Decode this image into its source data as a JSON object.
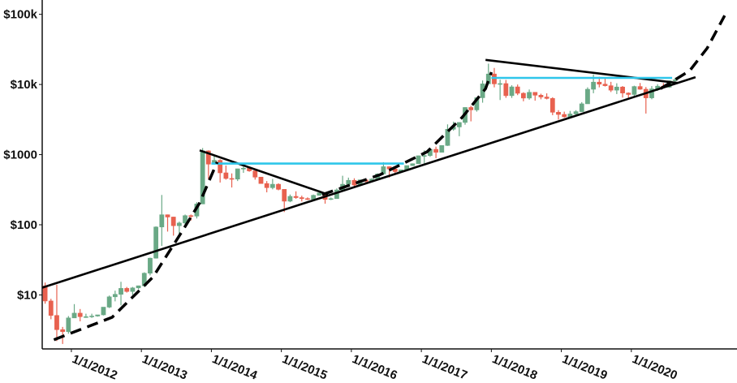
{
  "chart_data": {
    "type": "candlestick",
    "y_scale": "log",
    "xlim": [
      "2011-08",
      "2021-06"
    ],
    "ylim": [
      1.7,
      160000
    ],
    "yticks": [
      {
        "value": 10,
        "label": "$10"
      },
      {
        "value": 100,
        "label": "$100"
      },
      {
        "value": 1000,
        "label": "$1000"
      },
      {
        "value": 10000,
        "label": "$10k"
      },
      {
        "value": 100000,
        "label": "$100k"
      }
    ],
    "xticks": [
      {
        "value": "2012-01",
        "label": "1/1/2012"
      },
      {
        "value": "2013-01",
        "label": "1/1/2013"
      },
      {
        "value": "2014-01",
        "label": "1/1/2014"
      },
      {
        "value": "2015-01",
        "label": "1/1/2015"
      },
      {
        "value": "2016-01",
        "label": "1/1/2016"
      },
      {
        "value": "2017-01",
        "label": "1/1/2017"
      },
      {
        "value": "2018-01",
        "label": "1/1/2018"
      },
      {
        "value": "2019-01",
        "label": "1/1/2019"
      },
      {
        "value": "2020-01",
        "label": "1/1/2020"
      }
    ],
    "up_color": "#6aa986",
    "down_color": "#e8614f",
    "candles": {
      "x": [
        "2011-08",
        "2011-09",
        "2011-10",
        "2011-11",
        "2011-12",
        "2012-01",
        "2012-02",
        "2012-03",
        "2012-04",
        "2012-05",
        "2012-06",
        "2012-07",
        "2012-08",
        "2012-09",
        "2012-10",
        "2012-11",
        "2012-12",
        "2013-01",
        "2013-02",
        "2013-03",
        "2013-04",
        "2013-05",
        "2013-06",
        "2013-07",
        "2013-08",
        "2013-09",
        "2013-10",
        "2013-11",
        "2013-12",
        "2014-01",
        "2014-02",
        "2014-03",
        "2014-04",
        "2014-05",
        "2014-06",
        "2014-07",
        "2014-08",
        "2014-09",
        "2014-10",
        "2014-11",
        "2014-12",
        "2015-01",
        "2015-02",
        "2015-03",
        "2015-04",
        "2015-05",
        "2015-06",
        "2015-07",
        "2015-08",
        "2015-09",
        "2015-10",
        "2015-11",
        "2015-12",
        "2016-01",
        "2016-02",
        "2016-03",
        "2016-04",
        "2016-05",
        "2016-06",
        "2016-07",
        "2016-08",
        "2016-09",
        "2016-10",
        "2016-11",
        "2016-12",
        "2017-01",
        "2017-02",
        "2017-03",
        "2017-04",
        "2017-05",
        "2017-06",
        "2017-07",
        "2017-08",
        "2017-09",
        "2017-10",
        "2017-11",
        "2017-12",
        "2018-01",
        "2018-02",
        "2018-03",
        "2018-04",
        "2018-05",
        "2018-06",
        "2018-07",
        "2018-08",
        "2018-09",
        "2018-10",
        "2018-11",
        "2018-12",
        "2019-01",
        "2019-02",
        "2019-03",
        "2019-04",
        "2019-05",
        "2019-06",
        "2019-07",
        "2019-08",
        "2019-09",
        "2019-10",
        "2019-11",
        "2019-12",
        "2020-01",
        "2020-02",
        "2020-03",
        "2020-04",
        "2020-05",
        "2020-06",
        "2020-07",
        "2020-08"
      ],
      "open": [
        13.4,
        8.2,
        5.1,
        3.2,
        3.0,
        4.7,
        5.5,
        4.9,
        4.9,
        5.0,
        5.2,
        6.7,
        9.4,
        10.2,
        12.4,
        11.2,
        12.6,
        13.5,
        20.4,
        33.4,
        93,
        139,
        129,
        97,
        106,
        135,
        133,
        198,
        1130,
        732,
        830,
        550,
        457,
        448,
        628,
        640,
        586,
        478,
        387,
        338,
        378,
        320,
        217,
        254,
        244,
        236,
        230,
        263,
        284,
        230,
        236,
        314,
        378,
        430,
        369,
        437,
        416,
        448,
        531,
        673,
        624,
        573,
        608,
        698,
        742,
        963,
        970,
        1190,
        1080,
        1350,
        2300,
        2480,
        2875,
        4700,
        4340,
        6470,
        10200,
        14100,
        10200,
        10300,
        6930,
        9240,
        7490,
        6400,
        7730,
        7030,
        6630,
        6320,
        4020,
        3740,
        3460,
        3800,
        4100,
        5300,
        8550,
        10800,
        10100,
        9600,
        8300,
        9200,
        7550,
        7200,
        9350,
        8550,
        6440,
        8650,
        9460,
        9140,
        11300
      ],
      "high": [
        15,
        8.8,
        14,
        3.5,
        5.0,
        7.4,
        6.3,
        5.4,
        5.4,
        5.2,
        6.7,
        9.8,
        11.5,
        15.4,
        13,
        13,
        13.6,
        21,
        34,
        95,
        266,
        140,
        130,
        111,
        140,
        140,
        210,
        1240,
        1150,
        1000,
        860,
        700,
        540,
        630,
        680,
        660,
        600,
        480,
        420,
        450,
        390,
        320,
        270,
        300,
        260,
        246,
        270,
        310,
        290,
        245,
        330,
        500,
        470,
        460,
        440,
        440,
        460,
        540,
        780,
        680,
        630,
        610,
        700,
        750,
        970,
        1150,
        1200,
        1300,
        1360,
        2700,
        2950,
        2900,
        4750,
        4970,
        6470,
        11400,
        19800,
        17200,
        11700,
        11600,
        9750,
        9990,
        7750,
        8480,
        7760,
        7390,
        7470,
        6580,
        4300,
        4100,
        4200,
        4300,
        5600,
        9100,
        13900,
        12900,
        12300,
        10900,
        10400,
        9500,
        7720,
        9600,
        10500,
        9200,
        9470,
        10100,
        10450,
        11400,
        12470
      ],
      "low": [
        7.5,
        4.5,
        2.2,
        2.0,
        2.8,
        4.7,
        4.2,
        4.7,
        4.7,
        4.9,
        5.1,
        6.5,
        8.1,
        7.1,
        10.8,
        10,
        12.1,
        13,
        19,
        33,
        50,
        80,
        70,
        65,
        90,
        115,
        123,
        200,
        450,
        720,
        400,
        440,
        340,
        420,
        550,
        570,
        440,
        390,
        290,
        320,
        310,
        152,
        210,
        235,
        215,
        225,
        220,
        260,
        200,
        225,
        236,
        300,
        360,
        350,
        370,
        400,
        415,
        450,
        520,
        470,
        530,
        570,
        605,
        690,
        740,
        750,
        930,
        890,
        1080,
        1330,
        2200,
        1830,
        2670,
        2980,
        4100,
        5500,
        10900,
        9100,
        6000,
        6450,
        6430,
        7050,
        5760,
        6070,
        5880,
        6140,
        6130,
        3650,
        3150,
        3350,
        3400,
        3700,
        4050,
        5300,
        7500,
        9100,
        9350,
        7800,
        7300,
        6500,
        6400,
        6850,
        8400,
        3850,
        6150,
        8100,
        8900,
        8950,
        10600
      ],
      "close": [
        8.2,
        5.1,
        3.2,
        3.0,
        4.7,
        5.5,
        4.9,
        4.9,
        5.0,
        5.2,
        6.7,
        9.4,
        10.2,
        12.4,
        11.2,
        12.6,
        13.5,
        20.4,
        33.4,
        93,
        139,
        129,
        97,
        106,
        135,
        133,
        198,
        1130,
        732,
        830,
        550,
        457,
        448,
        628,
        640,
        586,
        478,
        387,
        338,
        378,
        320,
        217,
        254,
        244,
        236,
        230,
        263,
        284,
        230,
        236,
        314,
        378,
        430,
        369,
        437,
        416,
        448,
        531,
        673,
        624,
        573,
        608,
        698,
        742,
        963,
        970,
        1190,
        1080,
        1350,
        2300,
        2480,
        2875,
        4700,
        4340,
        6470,
        10200,
        14100,
        10200,
        10300,
        6930,
        9240,
        7490,
        6400,
        7730,
        7030,
        6630,
        6320,
        4020,
        3740,
        3460,
        3800,
        4100,
        5300,
        8550,
        10800,
        10100,
        9600,
        8300,
        9200,
        7550,
        7200,
        9350,
        8550,
        6440,
        8650,
        9460,
        9140,
        11300,
        11650
      ]
    },
    "trend_lines": [
      {
        "color": "#000000",
        "dashed": false,
        "x": [
          "2011-08",
          "2020-12"
        ],
        "y": [
          12.7,
          12700
        ]
      },
      {
        "color": "#000000",
        "dashed": false,
        "x": [
          "2013-11",
          "2015-09"
        ],
        "y": [
          1150,
          270
        ]
      },
      {
        "color": "#2ec6ea",
        "dashed": false,
        "x": [
          "2014-01",
          "2016-10"
        ],
        "y": [
          745,
          745
        ]
      },
      {
        "color": "#000000",
        "dashed": false,
        "x": [
          "2017-12",
          "2020-09"
        ],
        "y": [
          22400,
          10500
        ]
      },
      {
        "color": "#2ec6ea",
        "dashed": false,
        "x": [
          "2018-01",
          "2020-08"
        ],
        "y": [
          12400,
          12400
        ]
      },
      {
        "color": "#000000",
        "dashed": true,
        "x": [
          "2011-10",
          "2012-08",
          "2013-03",
          "2013-08",
          "2013-11",
          "2014-02"
        ],
        "y": [
          2.3,
          4.8,
          18,
          81,
          206,
          785
        ]
      },
      {
        "color": "#000000",
        "dashed": true,
        "x": [
          "2015-08",
          "2016-06",
          "2017-02",
          "2017-08",
          "2017-12",
          "2018-01"
        ],
        "y": [
          269,
          520,
          1100,
          3400,
          8700,
          15000
        ]
      },
      {
        "color": "#000000",
        "dashed": true,
        "x": [
          "2020-06",
          "2020-11",
          "2021-02",
          "2021-05"
        ],
        "y": [
          8700,
          15700,
          33000,
          96000
        ]
      }
    ]
  }
}
